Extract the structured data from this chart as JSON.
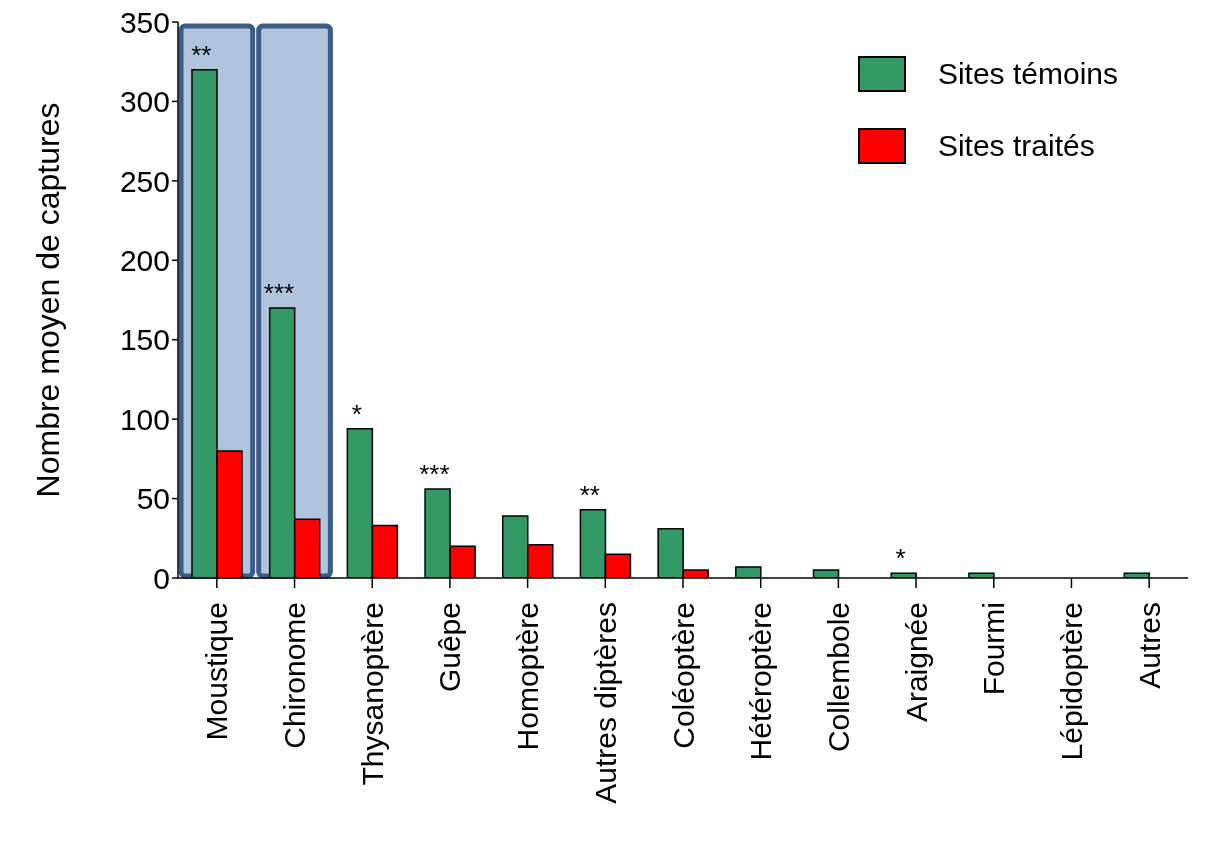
{
  "chart_data": {
    "type": "bar",
    "ylabel": "Nombre moyen de captures",
    "categories": [
      "Moustique",
      "Chironome",
      "Thysanoptère",
      "Guêpe",
      "Homoptère",
      "Autres diptères",
      "Coléoptère",
      "Hétéroptère",
      "Collembole",
      "Araignée",
      "Fourmi",
      "Lépidoptère",
      "Autres"
    ],
    "series": [
      {
        "name": "Sites témoins",
        "color": "#339966",
        "values": [
          320,
          170,
          94,
          56,
          39,
          43,
          31,
          7,
          5,
          3,
          3,
          0,
          3
        ]
      },
      {
        "name": "Sites traités",
        "color": "#ff0000",
        "values": [
          80,
          37,
          33,
          20,
          21,
          15,
          5,
          0,
          0,
          0,
          0,
          0,
          0
        ]
      }
    ],
    "ylim": [
      0,
      350
    ],
    "yticks": [
      0,
      50,
      100,
      150,
      200,
      250,
      300,
      350
    ],
    "legend": "top right",
    "bands": [
      {
        "axis": "x",
        "from": "Moustique",
        "to": "Moustique",
        "color": "#b0c4de"
      },
      {
        "axis": "x",
        "from": "Chironome",
        "to": "Chironome",
        "color": "#b0c4de"
      }
    ],
    "annotations": [
      {
        "text": "**",
        "x": "Moustique",
        "y": 320
      },
      {
        "text": "***",
        "x": "Chironome",
        "y": 170
      },
      {
        "text": "*",
        "x": "Thysanoptère",
        "y": 94
      },
      {
        "text": "***",
        "x": "Guêpe",
        "y": 56
      },
      {
        "text": "**",
        "x": "Autres diptères",
        "y": 43
      },
      {
        "text": "*",
        "x": "Araignée",
        "y": 3
      }
    ]
  }
}
